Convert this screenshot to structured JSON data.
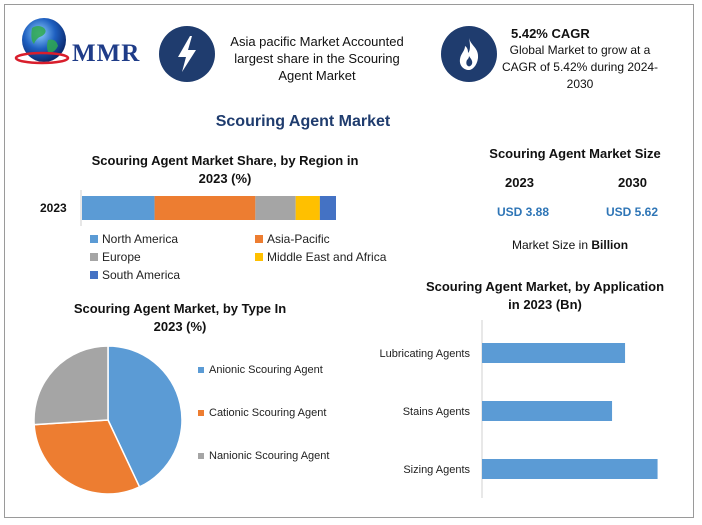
{
  "header": {
    "logo_text": "MMR",
    "box1_text": "Asia pacific Market Accounted largest share in the Scouring Agent Market",
    "box2_title": "5.42% CAGR",
    "box2_text": "Global Market to grow at a CAGR of 5.42% during 2024-2030",
    "icon1": "lightning-bolt-icon",
    "icon2": "flame-icon"
  },
  "main_title": "Scouring Agent Market",
  "region_chart": {
    "title_line1": "Scouring Agent Market Share, by Region in",
    "title_line2": "2023 (%)"
  },
  "market_size": {
    "title": "Scouring Agent Market Size",
    "year1": "2023",
    "year2": "2030",
    "value1": "USD 3.88",
    "value2": "USD 5.62",
    "caption_prefix": "Market Size in",
    "caption_unit": "Billion"
  },
  "type_chart": {
    "title_line1": "Scouring Agent Market, by Type In",
    "title_line2": "2023 (%)"
  },
  "application_chart": {
    "title_line1": "Scouring Agent Market, by Application",
    "title_line2": "in 2023 (Bn)"
  },
  "chart_data": [
    {
      "type": "bar",
      "orientation": "horizontal",
      "stacked": true,
      "title": "Scouring Agent Market Share, by Region in 2023 (%)",
      "categories": [
        "2023"
      ],
      "series": [
        {
          "name": "North America",
          "values": [
            18
          ],
          "color": "#5b9bd5"
        },
        {
          "name": "Asia-Pacific",
          "values": [
            25
          ],
          "color": "#ed7d31"
        },
        {
          "name": "Europe",
          "values": [
            10
          ],
          "color": "#a5a5a5"
        },
        {
          "name": "Middle East and Africa",
          "values": [
            6
          ],
          "color": "#ffc000"
        },
        {
          "name": "South America",
          "values": [
            4
          ],
          "color": "#4472c4"
        }
      ],
      "legend": "bottom"
    },
    {
      "type": "pie",
      "title": "Scouring Agent Market, by Type In 2023 (%)",
      "labels": [
        "Anionic Scouring Agent",
        "Cationic Scouring Agent",
        "Nanionic Scouring Agent"
      ],
      "values": [
        43,
        31,
        26
      ],
      "colors": [
        "#5b9bd5",
        "#ed7d31",
        "#a5a5a5"
      ],
      "legend": "right"
    },
    {
      "type": "bar",
      "orientation": "horizontal",
      "title": "Scouring Agent Market, by Application in 2023 (Bn)",
      "categories": [
        "Lubricating Agents",
        "Stains Agents",
        "Sizing Agents"
      ],
      "values": [
        1.1,
        1.0,
        1.35
      ],
      "color": "#5b9bd5",
      "xlim": [
        0,
        2
      ]
    }
  ]
}
